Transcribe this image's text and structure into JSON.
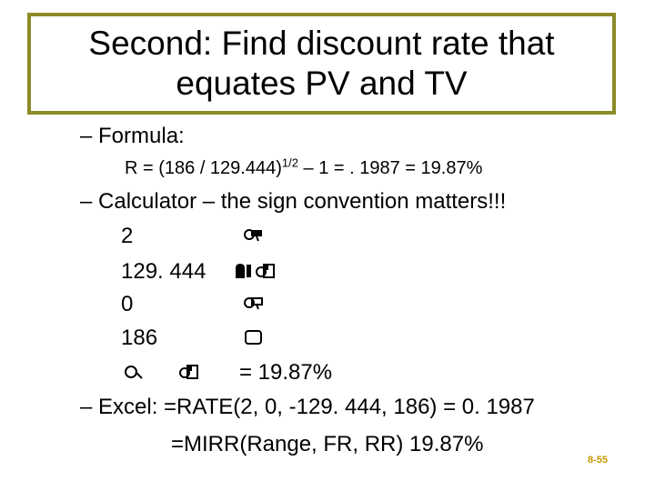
{
  "slide": {
    "title_line1": "Second: Find discount rate that",
    "title_line2": "equates PV and TV",
    "bullet_formula": "– Formula:",
    "formula_part1": "R = (186 / 129.444)",
    "formula_exponent": "1/2",
    "formula_part2": " – 1 = . 1987 = 19.87%",
    "bullet_calculator": "– Calculator – the sign convention matters!!!",
    "calc_rows": [
      {
        "value": "2",
        "key_icon": "n-key-icon"
      },
      {
        "value": "129. 444",
        "key_icon": "pv-key-icon"
      },
      {
        "value": "0",
        "key_icon": "pmt-key-icon"
      },
      {
        "value": "186",
        "key_icon": "fv-key-icon"
      }
    ],
    "calc_result": "= 19.87%",
    "excel_line1": "– Excel: =RATE(2, 0, -129. 444, 186) = 0. 1987",
    "excel_line2": "=MIRR(Range, FR, RR)  19.87%",
    "page_number": "8-55"
  },
  "colors": {
    "title_border": "#8b8b28",
    "page_number": "#c79a00"
  }
}
